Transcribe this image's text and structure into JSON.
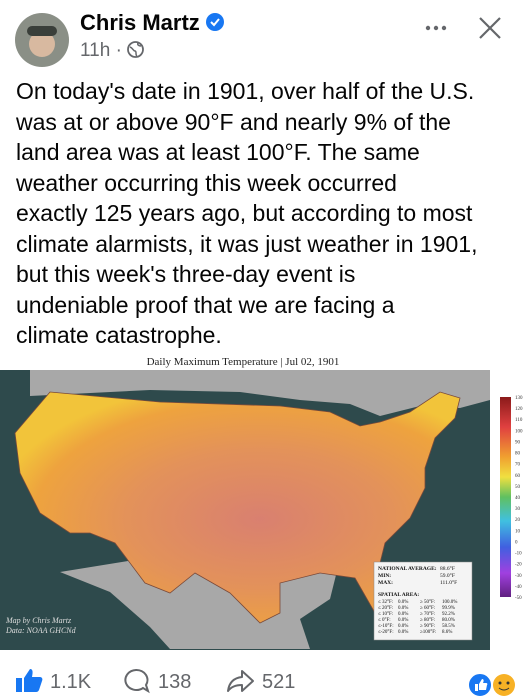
{
  "post": {
    "author": "Chris Martz",
    "time": "11h ·",
    "text_lines": [
      "On today's date in 1901, over half of the U.S.",
      "was at or above 90°F and nearly 9% of the",
      "land area was at least 100°F. The same",
      "weather occurring this week occurred",
      "exactly 125 years ago, but according to most",
      "climate alarmists, it was just weather in 1901,",
      "but this week's three-day event is",
      "undeniable proof that we are facing a",
      "climate catastrophe."
    ],
    "image": {
      "title": "Daily Maximum Temperature | Jul 02, 1901",
      "credit_lines": [
        "Map by Chris Martz",
        "Data: NOAA GHCNd"
      ],
      "colorbar_ticks": [
        "130",
        "120",
        "110",
        "100",
        "90",
        "80",
        "70",
        "60",
        "50",
        "40",
        "30",
        "20",
        "10",
        "0",
        "-10",
        "-20",
        "-30",
        "-40",
        "-50"
      ],
      "stats": [
        [
          "NATIONAL AVERAGE:",
          "88.6°F"
        ],
        [
          "MIN:",
          "59.0°F"
        ],
        [
          "MAX:",
          "111.0°F"
        ]
      ],
      "spatial_title": "SPATIAL AREA:",
      "spatial_rows": [
        [
          "≤ 32°F:",
          "0.0%",
          "≥ 50°F:",
          "100.0%"
        ],
        [
          "≤ 20°F:",
          "0.0%",
          "≥ 60°F:",
          "99.9%"
        ],
        [
          "≤ 10°F:",
          "0.0%",
          "≥ 70°F:",
          "92.2%"
        ],
        [
          "≤ 0°F:",
          "0.0%",
          "≥ 80°F:",
          "80.0%"
        ],
        [
          "≤-10°F:",
          "0.0%",
          "≥ 90°F:",
          "58.5%"
        ],
        [
          "≤-20°F:",
          "0.0%",
          "≥100°F:",
          "8.6%"
        ]
      ]
    },
    "reactions": {
      "likes": "1.1K",
      "comments": "138",
      "shares": "521"
    }
  }
}
